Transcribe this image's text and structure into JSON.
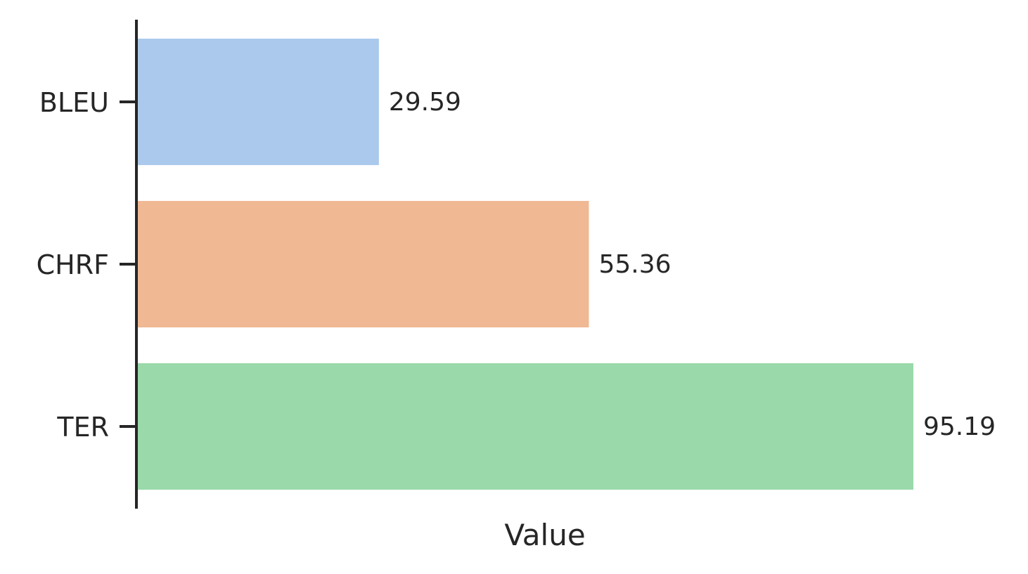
{
  "chart_data": {
    "type": "bar",
    "orientation": "horizontal",
    "categories": [
      "BLEU",
      "CHRF",
      "TER"
    ],
    "values": [
      29.59,
      55.36,
      95.19
    ],
    "data_labels": [
      "29.59",
      "55.36",
      "95.19"
    ],
    "colors": [
      "#abc9ec",
      "#f0b893",
      "#9ad9aa"
    ],
    "title": "",
    "xlabel": "Value",
    "ylabel": "",
    "xlim": [
      0,
      100
    ],
    "grid": false,
    "legend": "none",
    "axis_color": "#262626"
  }
}
